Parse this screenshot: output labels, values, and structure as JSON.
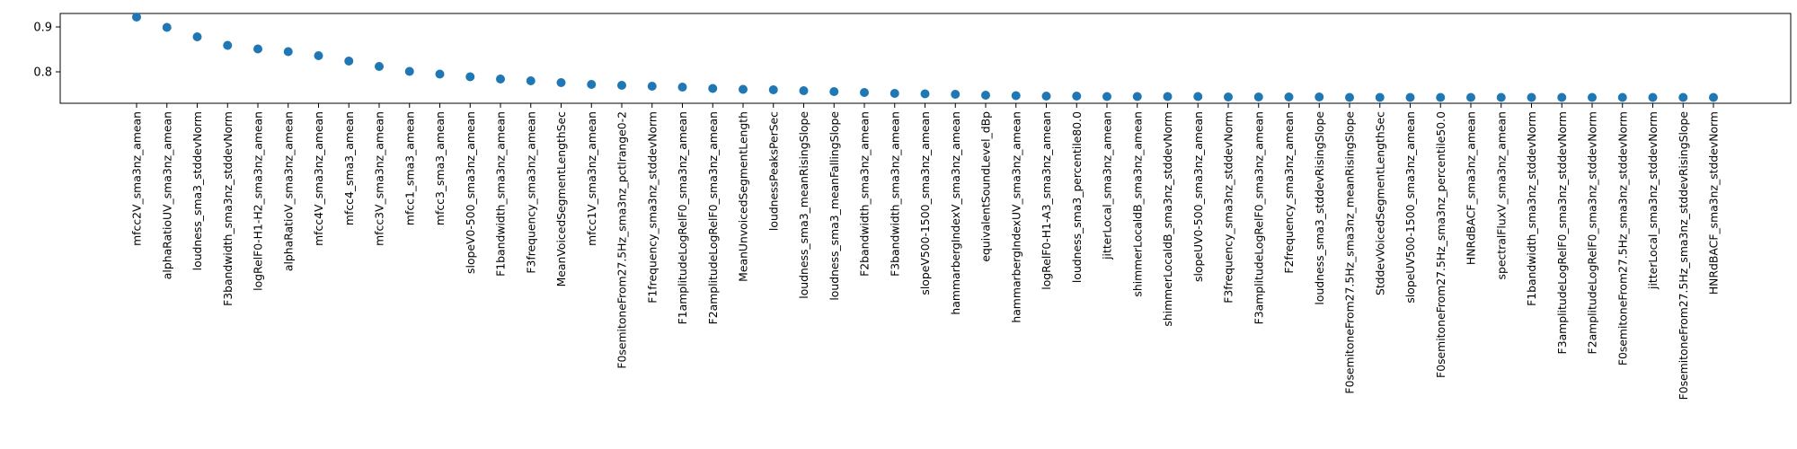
{
  "chart_data": {
    "type": "scatter",
    "title": "",
    "xlabel": "",
    "ylabel": "",
    "ylim": [
      0.73,
      0.93
    ],
    "yticks": [
      0.8,
      0.9
    ],
    "grid": false,
    "marker_color": "#1f77b4",
    "categories": [
      "mfcc2V_sma3nz_amean",
      "alphaRatioUV_sma3nz_amean",
      "loudness_sma3_stddevNorm",
      "F3bandwidth_sma3nz_stddevNorm",
      "logRelF0-H1-H2_sma3nz_amean",
      "alphaRatioV_sma3nz_amean",
      "mfcc4V_sma3nz_amean",
      "mfcc4_sma3_amean",
      "mfcc3V_sma3nz_amean",
      "mfcc1_sma3_amean",
      "mfcc3_sma3_amean",
      "slopeV0-500_sma3nz_amean",
      "F1bandwidth_sma3nz_amean",
      "F3frequency_sma3nz_amean",
      "MeanVoicedSegmentLengthSec",
      "mfcc1V_sma3nz_amean",
      "F0semitoneFrom27.5Hz_sma3nz_pctlrange0-2",
      "F1frequency_sma3nz_stddevNorm",
      "F1amplitudeLogRelF0_sma3nz_amean",
      "F2amplitudeLogRelF0_sma3nz_amean",
      "MeanUnvoicedSegmentLength",
      "loudnessPeaksPerSec",
      "loudness_sma3_meanRisingSlope",
      "loudness_sma3_meanFallingSlope",
      "F2bandwidth_sma3nz_amean",
      "F3bandwidth_sma3nz_amean",
      "slopeV500-1500_sma3nz_amean",
      "hammarbergIndexV_sma3nz_amean",
      "equivalentSoundLevel_dBp",
      "hammarbergIndexUV_sma3nz_amean",
      "logRelF0-H1-A3_sma3nz_amean",
      "loudness_sma3_percentile80.0",
      "jitterLocal_sma3nz_amean",
      "shimmerLocaldB_sma3nz_amean",
      "shimmerLocaldB_sma3nz_stddevNorm",
      "slopeUV0-500_sma3nz_amean",
      "F3frequency_sma3nz_stddevNorm",
      "F3amplitudeLogRelF0_sma3nz_amean",
      "F2frequency_sma3nz_amean",
      "loudness_sma3_stddevRisingSlope",
      "F0semitoneFrom27.5Hz_sma3nz_meanRisingSlope",
      "StddevVoicedSegmentLengthSec",
      "slopeUV500-1500_sma3nz_amean",
      "F0semitoneFrom27.5Hz_sma3nz_percentile50.0",
      "HNRdBACF_sma3nz_amean",
      "spectralFluxV_sma3nz_amean",
      "F1bandwidth_sma3nz_stddevNorm",
      "F3amplitudeLogRelF0_sma3nz_stddevNorm",
      "F2amplitudeLogRelF0_sma3nz_stddevNorm",
      "F0semitoneFrom27.5Hz_sma3nz_stddevNorm",
      "jitterLocal_sma3nz_stddevNorm",
      "F0semitoneFrom27.5Hz_sma3nz_stddevRisingSlope",
      "HNRdBACF_sma3nz_stddevNorm"
    ],
    "values": [
      0.922,
      0.899,
      0.878,
      0.859,
      0.851,
      0.845,
      0.836,
      0.824,
      0.812,
      0.801,
      0.795,
      0.789,
      0.784,
      0.78,
      0.776,
      0.772,
      0.77,
      0.768,
      0.766,
      0.763,
      0.761,
      0.76,
      0.758,
      0.756,
      0.754,
      0.752,
      0.751,
      0.75,
      0.748,
      0.747,
      0.746,
      0.746,
      0.745,
      0.745,
      0.745,
      0.745,
      0.744,
      0.744,
      0.744,
      0.744,
      0.743,
      0.743,
      0.743,
      0.743,
      0.743,
      0.743,
      0.743,
      0.743,
      0.743,
      0.743,
      0.743,
      0.743,
      0.743
    ]
  }
}
